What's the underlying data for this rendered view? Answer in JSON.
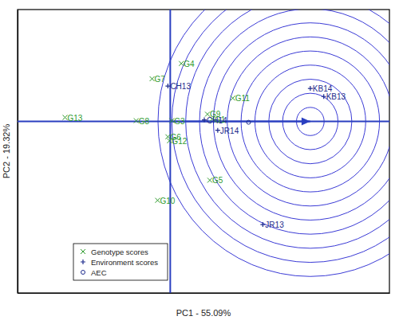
{
  "chart_data": {
    "type": "scatter",
    "x_label": "PC1 - 55.09%",
    "y_label": "PC2 - 19.32%",
    "xlim": [
      -3.86,
      5.54
    ],
    "ylim": [
      -4.26,
      2.78
    ],
    "tick_labels": false,
    "legend": "lower left",
    "origin": [
      0,
      0
    ],
    "circles": {
      "center": [
        3.54,
        0
      ],
      "radii": [
        0.35,
        0.7,
        1.05,
        1.4,
        1.75,
        2.1,
        2.45,
        2.8,
        3.15,
        3.5,
        3.85
      ],
      "color": "#3b3bd6"
    },
    "series": [
      {
        "name": "Genotype scores",
        "color": "#2e9a2e",
        "marker": "x",
        "labels": [
          "G4",
          "G7",
          "G13",
          "G8",
          "G3",
          "G9",
          "G1",
          "G11",
          "G6",
          "G12",
          "G5",
          "G10"
        ],
        "x": [
          0.28,
          -0.46,
          -2.66,
          -0.86,
          0.04,
          0.94,
          1.06,
          1.58,
          -0.06,
          -0.02,
          1.0,
          -0.32
        ],
        "y": [
          1.44,
          1.06,
          0.1,
          0.02,
          0.02,
          0.18,
          0.06,
          0.58,
          -0.38,
          -0.48,
          -1.46,
          -1.96
        ]
      },
      {
        "name": "Environment scores",
        "color": "#1c2a8c",
        "marker": "plus",
        "labels": [
          "CH13",
          "CH14",
          "JR14",
          "JR13",
          "KB14",
          "KB13"
        ],
        "x": [
          -0.06,
          0.86,
          1.2,
          2.34,
          3.54,
          3.88
        ],
        "y": [
          0.88,
          0.04,
          -0.22,
          -2.56,
          0.82,
          0.62
        ]
      },
      {
        "name": "AEC",
        "color": "#1c2a8c",
        "marker": "circle",
        "x": [
          1.98
        ],
        "y": [
          -0.02
        ]
      }
    ]
  }
}
